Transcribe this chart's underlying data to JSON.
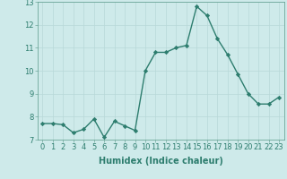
{
  "x": [
    0,
    1,
    2,
    3,
    4,
    5,
    6,
    7,
    8,
    9,
    10,
    11,
    12,
    13,
    14,
    15,
    16,
    17,
    18,
    19,
    20,
    21,
    22,
    23
  ],
  "y": [
    7.7,
    7.7,
    7.65,
    7.3,
    7.45,
    7.9,
    7.1,
    7.8,
    7.6,
    7.4,
    10.0,
    10.8,
    10.8,
    11.0,
    11.1,
    12.8,
    12.4,
    11.4,
    10.7,
    9.85,
    9.0,
    8.55,
    8.55,
    8.85
  ],
  "xlabel": "Humidex (Indice chaleur)",
  "ylim": [
    7,
    13
  ],
  "xlim": [
    -0.5,
    23.5
  ],
  "yticks": [
    7,
    8,
    9,
    10,
    11,
    12,
    13
  ],
  "xticks": [
    0,
    1,
    2,
    3,
    4,
    5,
    6,
    7,
    8,
    9,
    10,
    11,
    12,
    13,
    14,
    15,
    16,
    17,
    18,
    19,
    20,
    21,
    22,
    23
  ],
  "line_color": "#2d7d6e",
  "bg_color": "#ceeaea",
  "grid_color_major": "#b8d8d8",
  "grid_color_minor": "#c8e4e4",
  "marker": "D",
  "markersize": 2.2,
  "linewidth": 1.0,
  "tick_fontsize": 6.0,
  "xlabel_fontsize": 7.0
}
